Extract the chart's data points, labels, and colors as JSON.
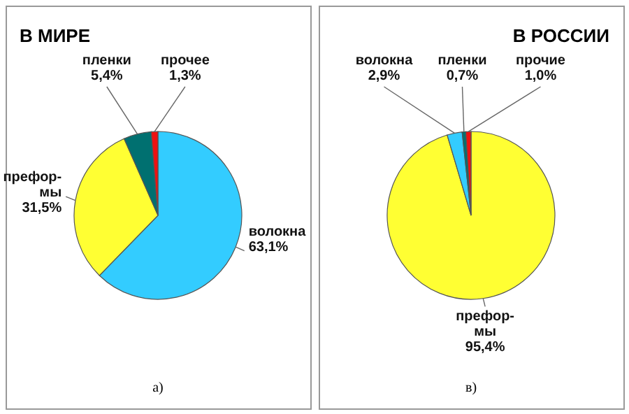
{
  "chart_data": [
    {
      "type": "pie",
      "title": "В МИРЕ",
      "categories": [
        "волокна",
        "префор-\nмы",
        "пленки",
        "прочее"
      ],
      "values": [
        63.1,
        31.5,
        5.4,
        1.3
      ],
      "value_labels": [
        "63,1%",
        "31,5%",
        "5,4%",
        "1,3%"
      ],
      "colors": [
        "#33ccff",
        "#ffff33",
        "#007070",
        "#ee1111"
      ],
      "annotations": [
        "а)"
      ]
    },
    {
      "type": "pie",
      "title": "В РОССИИ",
      "categories": [
        "префор-\nмы",
        "волокна",
        "пленки",
        "прочие"
      ],
      "values": [
        95.4,
        2.9,
        0.7,
        1.0
      ],
      "value_labels": [
        "95,4%",
        "2,9%",
        "0,7%",
        "1,0%"
      ],
      "colors": [
        "#ffff33",
        "#33ccff",
        "#007070",
        "#ee1111"
      ],
      "annotations": [
        "в)"
      ]
    }
  ]
}
